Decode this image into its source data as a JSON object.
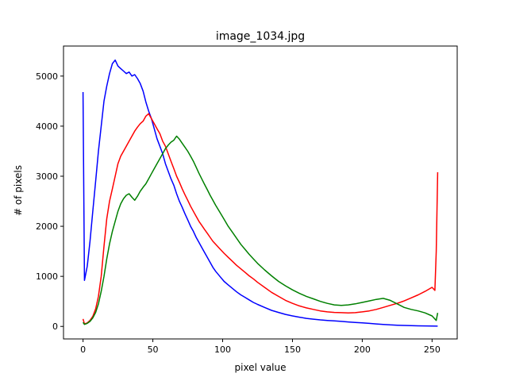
{
  "chart_data": {
    "type": "line",
    "title": "image_1034.jpg",
    "xlabel": "pixel value",
    "ylabel": "# of pixels",
    "xlim": [
      -14,
      268
    ],
    "ylim": [
      -250,
      5600
    ],
    "xticks": [
      0,
      50,
      100,
      150,
      200,
      250
    ],
    "yticks": [
      0,
      1000,
      2000,
      3000,
      4000,
      5000
    ],
    "grid": false,
    "legend": "none",
    "series": [
      {
        "color": "#0000ff",
        "points": [
          [
            0,
            4680
          ],
          [
            1,
            920
          ],
          [
            3,
            1200
          ],
          [
            5,
            1700
          ],
          [
            7,
            2300
          ],
          [
            9,
            2900
          ],
          [
            11,
            3500
          ],
          [
            13,
            4000
          ],
          [
            15,
            4500
          ],
          [
            17,
            4800
          ],
          [
            19,
            5050
          ],
          [
            21,
            5250
          ],
          [
            23,
            5320
          ],
          [
            25,
            5200
          ],
          [
            27,
            5150
          ],
          [
            29,
            5100
          ],
          [
            31,
            5050
          ],
          [
            33,
            5080
          ],
          [
            35,
            5000
          ],
          [
            37,
            5030
          ],
          [
            39,
            4950
          ],
          [
            41,
            4850
          ],
          [
            43,
            4700
          ],
          [
            45,
            4480
          ],
          [
            47,
            4300
          ],
          [
            49,
            4150
          ],
          [
            51,
            3950
          ],
          [
            53,
            3750
          ],
          [
            55,
            3600
          ],
          [
            57,
            3450
          ],
          [
            59,
            3250
          ],
          [
            61,
            3100
          ],
          [
            63,
            2950
          ],
          [
            65,
            2820
          ],
          [
            67,
            2650
          ],
          [
            69,
            2500
          ],
          [
            71,
            2380
          ],
          [
            73,
            2250
          ],
          [
            75,
            2130
          ],
          [
            77,
            2000
          ],
          [
            79,
            1900
          ],
          [
            81,
            1780
          ],
          [
            83,
            1680
          ],
          [
            85,
            1580
          ],
          [
            87,
            1480
          ],
          [
            89,
            1380
          ],
          [
            91,
            1280
          ],
          [
            93,
            1180
          ],
          [
            95,
            1100
          ],
          [
            98,
            1000
          ],
          [
            101,
            900
          ],
          [
            104,
            830
          ],
          [
            107,
            760
          ],
          [
            110,
            690
          ],
          [
            113,
            630
          ],
          [
            116,
            580
          ],
          [
            119,
            530
          ],
          [
            122,
            480
          ],
          [
            125,
            440
          ],
          [
            130,
            380
          ],
          [
            135,
            320
          ],
          [
            140,
            280
          ],
          [
            145,
            240
          ],
          [
            150,
            210
          ],
          [
            155,
            185
          ],
          [
            160,
            160
          ],
          [
            165,
            145
          ],
          [
            170,
            130
          ],
          [
            175,
            120
          ],
          [
            180,
            110
          ],
          [
            185,
            100
          ],
          [
            190,
            90
          ],
          [
            195,
            80
          ],
          [
            200,
            70
          ],
          [
            205,
            60
          ],
          [
            210,
            50
          ],
          [
            215,
            40
          ],
          [
            220,
            30
          ],
          [
            225,
            25
          ],
          [
            230,
            20
          ],
          [
            235,
            15
          ],
          [
            240,
            12
          ],
          [
            245,
            10
          ],
          [
            250,
            8
          ],
          [
            254,
            5
          ]
        ]
      },
      {
        "color": "#ff0000",
        "points": [
          [
            0,
            150
          ],
          [
            1,
            50
          ],
          [
            3,
            70
          ],
          [
            5,
            120
          ],
          [
            7,
            200
          ],
          [
            9,
            350
          ],
          [
            11,
            600
          ],
          [
            13,
            1000
          ],
          [
            15,
            1600
          ],
          [
            17,
            2150
          ],
          [
            19,
            2500
          ],
          [
            21,
            2750
          ],
          [
            23,
            3000
          ],
          [
            25,
            3250
          ],
          [
            27,
            3400
          ],
          [
            29,
            3500
          ],
          [
            31,
            3600
          ],
          [
            33,
            3700
          ],
          [
            35,
            3800
          ],
          [
            37,
            3900
          ],
          [
            39,
            3980
          ],
          [
            41,
            4050
          ],
          [
            43,
            4100
          ],
          [
            45,
            4200
          ],
          [
            47,
            4250
          ],
          [
            49,
            4150
          ],
          [
            51,
            4050
          ],
          [
            53,
            3950
          ],
          [
            55,
            3850
          ],
          [
            57,
            3700
          ],
          [
            59,
            3600
          ],
          [
            61,
            3450
          ],
          [
            63,
            3300
          ],
          [
            65,
            3150
          ],
          [
            67,
            3000
          ],
          [
            69,
            2880
          ],
          [
            71,
            2750
          ],
          [
            73,
            2630
          ],
          [
            75,
            2520
          ],
          [
            77,
            2400
          ],
          [
            79,
            2300
          ],
          [
            81,
            2200
          ],
          [
            83,
            2100
          ],
          [
            85,
            2020
          ],
          [
            87,
            1940
          ],
          [
            89,
            1860
          ],
          [
            91,
            1780
          ],
          [
            93,
            1700
          ],
          [
            95,
            1640
          ],
          [
            98,
            1550
          ],
          [
            101,
            1460
          ],
          [
            104,
            1380
          ],
          [
            107,
            1300
          ],
          [
            110,
            1220
          ],
          [
            113,
            1150
          ],
          [
            116,
            1080
          ],
          [
            119,
            1010
          ],
          [
            122,
            950
          ],
          [
            125,
            880
          ],
          [
            130,
            780
          ],
          [
            135,
            680
          ],
          [
            140,
            600
          ],
          [
            145,
            520
          ],
          [
            150,
            460
          ],
          [
            155,
            410
          ],
          [
            160,
            370
          ],
          [
            165,
            340
          ],
          [
            170,
            310
          ],
          [
            175,
            290
          ],
          [
            180,
            280
          ],
          [
            185,
            275
          ],
          [
            190,
            270
          ],
          [
            195,
            275
          ],
          [
            200,
            290
          ],
          [
            205,
            310
          ],
          [
            210,
            340
          ],
          [
            215,
            380
          ],
          [
            220,
            420
          ],
          [
            225,
            460
          ],
          [
            230,
            510
          ],
          [
            235,
            570
          ],
          [
            240,
            630
          ],
          [
            245,
            700
          ],
          [
            250,
            780
          ],
          [
            252,
            720
          ],
          [
            253,
            1500
          ],
          [
            254,
            3080
          ]
        ]
      },
      {
        "color": "#008000",
        "points": [
          [
            0,
            80
          ],
          [
            1,
            40
          ],
          [
            3,
            60
          ],
          [
            5,
            100
          ],
          [
            7,
            170
          ],
          [
            9,
            280
          ],
          [
            11,
            450
          ],
          [
            13,
            700
          ],
          [
            15,
            1000
          ],
          [
            17,
            1350
          ],
          [
            19,
            1650
          ],
          [
            21,
            1900
          ],
          [
            23,
            2100
          ],
          [
            25,
            2300
          ],
          [
            27,
            2450
          ],
          [
            29,
            2550
          ],
          [
            31,
            2620
          ],
          [
            33,
            2650
          ],
          [
            35,
            2580
          ],
          [
            37,
            2520
          ],
          [
            39,
            2600
          ],
          [
            41,
            2700
          ],
          [
            43,
            2780
          ],
          [
            45,
            2850
          ],
          [
            47,
            2950
          ],
          [
            49,
            3050
          ],
          [
            51,
            3150
          ],
          [
            53,
            3250
          ],
          [
            55,
            3350
          ],
          [
            57,
            3450
          ],
          [
            59,
            3550
          ],
          [
            61,
            3620
          ],
          [
            63,
            3680
          ],
          [
            65,
            3720
          ],
          [
            67,
            3800
          ],
          [
            69,
            3740
          ],
          [
            71,
            3660
          ],
          [
            73,
            3580
          ],
          [
            75,
            3500
          ],
          [
            77,
            3400
          ],
          [
            79,
            3300
          ],
          [
            81,
            3180
          ],
          [
            83,
            3060
          ],
          [
            85,
            2950
          ],
          [
            87,
            2840
          ],
          [
            89,
            2730
          ],
          [
            91,
            2620
          ],
          [
            93,
            2520
          ],
          [
            95,
            2420
          ],
          [
            98,
            2280
          ],
          [
            101,
            2140
          ],
          [
            104,
            2000
          ],
          [
            107,
            1880
          ],
          [
            110,
            1760
          ],
          [
            113,
            1640
          ],
          [
            116,
            1540
          ],
          [
            119,
            1440
          ],
          [
            122,
            1350
          ],
          [
            125,
            1260
          ],
          [
            130,
            1130
          ],
          [
            135,
            1010
          ],
          [
            140,
            900
          ],
          [
            145,
            810
          ],
          [
            150,
            730
          ],
          [
            155,
            660
          ],
          [
            160,
            600
          ],
          [
            165,
            550
          ],
          [
            170,
            500
          ],
          [
            175,
            460
          ],
          [
            180,
            430
          ],
          [
            185,
            420
          ],
          [
            190,
            430
          ],
          [
            195,
            450
          ],
          [
            200,
            480
          ],
          [
            205,
            510
          ],
          [
            210,
            540
          ],
          [
            215,
            560
          ],
          [
            220,
            520
          ],
          [
            225,
            450
          ],
          [
            230,
            380
          ],
          [
            235,
            340
          ],
          [
            240,
            310
          ],
          [
            245,
            270
          ],
          [
            250,
            210
          ],
          [
            253,
            120
          ],
          [
            254,
            270
          ]
        ]
      }
    ]
  }
}
